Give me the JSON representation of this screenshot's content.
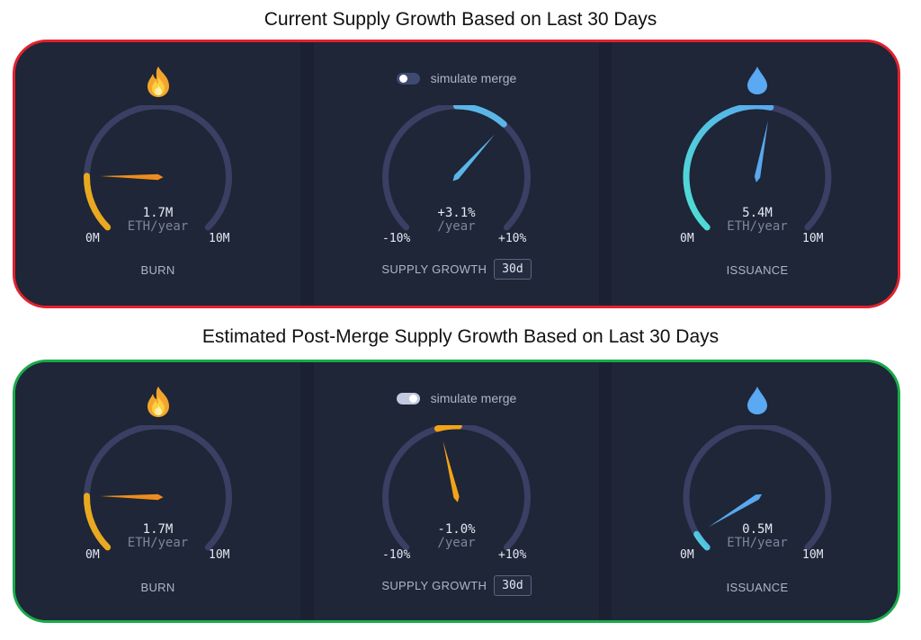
{
  "colors": {
    "current_border": "#e2212e",
    "merge_border": "#1aaa4a",
    "track": "#3a3f63",
    "burn": "#e9a91f",
    "burn_needle": "#ee8c1f",
    "issuance_teal": "#4ee0d3",
    "issuance_blue": "#58a8ee",
    "supply_blue": "#5ab6e8",
    "supply_orange": "#f3a316",
    "toggle_off": "#3e4a70",
    "toggle_on": "#c3c9df"
  },
  "sections": [
    {
      "title": "Current Supply Growth Based on Last 30 Days",
      "burn": {
        "icon": "fire-icon",
        "value": "1.7M",
        "unit": "ETH/year",
        "min_label": "0M",
        "max_label": "10M",
        "label": "BURN",
        "fraction": 0.17
      },
      "supply": {
        "toggle_on": false,
        "simulate_label": "simulate merge",
        "value": "+3.1%",
        "unit": "/year",
        "min_label": "-10%",
        "max_label": "+10%",
        "label": "SUPPLY GROWTH",
        "period": "30d",
        "growth_percent": 3.1
      },
      "issuance": {
        "icon": "droplet-icon",
        "value": "5.4M",
        "unit": "ETH/year",
        "min_label": "0M",
        "max_label": "10M",
        "label": "ISSUANCE",
        "fraction": 0.54
      }
    },
    {
      "title": "Estimated Post-Merge Supply Growth Based on Last 30 Days",
      "burn": {
        "icon": "fire-icon",
        "value": "1.7M",
        "unit": "ETH/year",
        "min_label": "0M",
        "max_label": "10M",
        "label": "BURN",
        "fraction": 0.17
      },
      "supply": {
        "toggle_on": true,
        "simulate_label": "simulate merge",
        "value": "-1.0%",
        "unit": "/year",
        "min_label": "-10%",
        "max_label": "+10%",
        "label": "SUPPLY GROWTH",
        "period": "30d",
        "growth_percent": -1.0
      },
      "issuance": {
        "icon": "droplet-icon",
        "value": "0.5M",
        "unit": "ETH/year",
        "min_label": "0M",
        "max_label": "10M",
        "label": "ISSUANCE",
        "fraction": 0.05
      }
    }
  ]
}
